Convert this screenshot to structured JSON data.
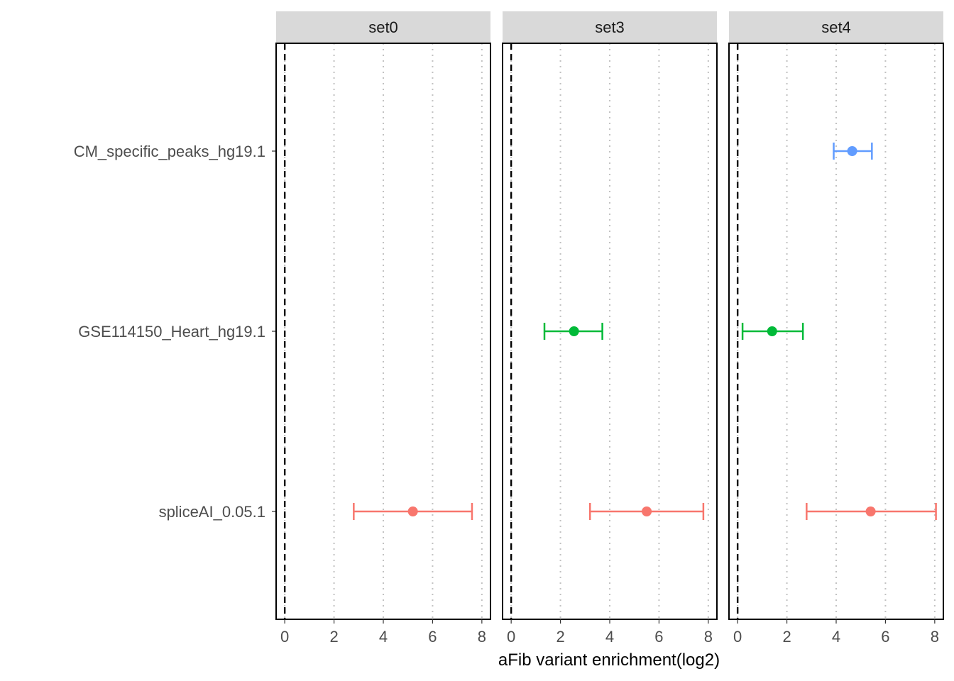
{
  "chart_data": {
    "type": "scatter",
    "subtype": "forest-plot-faceted",
    "xlabel": "aFib variant enrichment(log2)",
    "ylabel": "",
    "xlim": [
      -0.35,
      8.35
    ],
    "x_ticks": [
      0,
      2,
      4,
      6,
      8
    ],
    "reference_line_x": 0,
    "grid": "vertical dotted at x ticks",
    "categories": [
      "CM_specific_peaks_hg19.1",
      "GSE114150_Heart_hg19.1",
      "spliceAI_0.05.1"
    ],
    "colors": {
      "CM_specific_peaks_hg19.1": "#619CFF",
      "GSE114150_Heart_hg19.1": "#00BA38",
      "spliceAI_0.05.1": "#F8766D"
    },
    "panels": [
      {
        "name": "set0",
        "points": [
          {
            "category": "spliceAI_0.05.1",
            "estimate": 5.2,
            "lower": 2.8,
            "upper": 7.6
          }
        ]
      },
      {
        "name": "set3",
        "points": [
          {
            "category": "GSE114150_Heart_hg19.1",
            "estimate": 2.55,
            "lower": 1.35,
            "upper": 3.7
          },
          {
            "category": "spliceAI_0.05.1",
            "estimate": 5.5,
            "lower": 3.2,
            "upper": 7.8
          }
        ]
      },
      {
        "name": "set4",
        "points": [
          {
            "category": "CM_specific_peaks_hg19.1",
            "estimate": 4.65,
            "lower": 3.9,
            "upper": 5.45
          },
          {
            "category": "GSE114150_Heart_hg19.1",
            "estimate": 1.4,
            "lower": 0.2,
            "upper": 2.65
          },
          {
            "category": "spliceAI_0.05.1",
            "estimate": 5.4,
            "lower": 2.8,
            "upper": 8.05
          }
        ]
      }
    ]
  }
}
